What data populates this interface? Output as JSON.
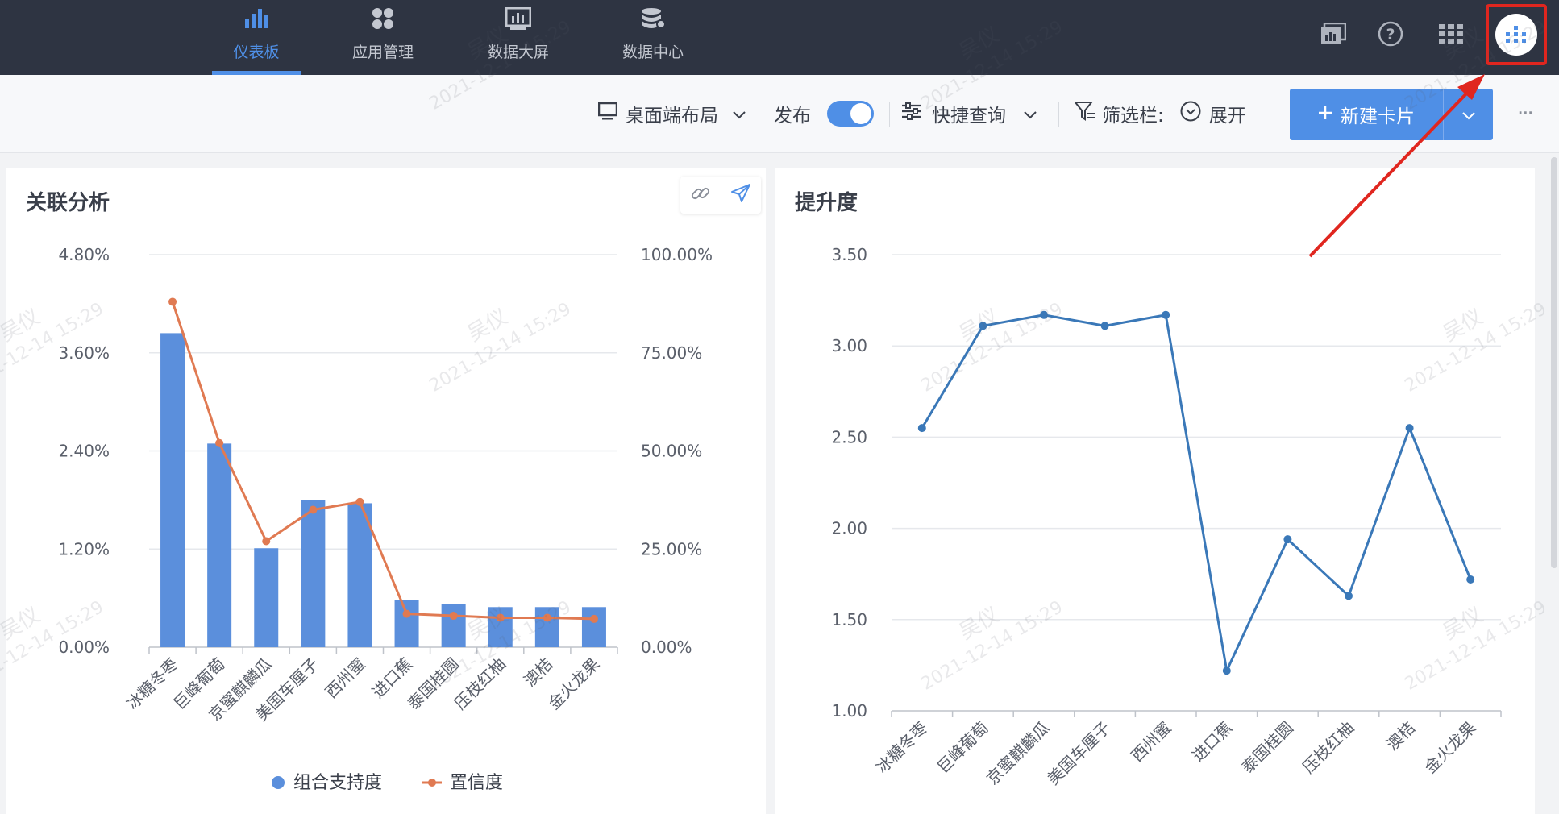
{
  "nav": {
    "items": [
      {
        "label": "仪表板",
        "icon": "bar-chart-icon",
        "active": true
      },
      {
        "label": "应用管理",
        "icon": "apps-grid-icon",
        "active": false
      },
      {
        "label": "数据大屏",
        "icon": "data-screen-icon",
        "active": false
      },
      {
        "label": "数据中心",
        "icon": "database-icon",
        "active": false
      }
    ],
    "right_icons": [
      "report-icon",
      "help-icon",
      "app-launcher-icon",
      "avatar-icon"
    ]
  },
  "toolbar": {
    "layout_label": "桌面端布局",
    "publish_label": "发布",
    "publish_on": true,
    "quick_query_label": "快捷查询",
    "filter_label": "筛选栏:",
    "expand_label": "展开",
    "new_card_label": "新建卡片",
    "more_label": "···"
  },
  "watermark": {
    "name": "吴仪",
    "time": "2021-12-14 15:29"
  },
  "colors": {
    "nav_bg": "#2e3442",
    "accent": "#4f8fe6",
    "bar": "#5b8fdc",
    "confidence_line": "#e07a52",
    "lift_line": "#3a78b8",
    "highlight": "#e0261f"
  },
  "chart_data": [
    {
      "type": "bar",
      "title": "关联分析",
      "categories": [
        "冰糖冬枣",
        "巨峰葡萄",
        "京蜜麒麟瓜",
        "美国车厘子",
        "西州蜜",
        "进口蕉",
        "泰国桂圆",
        "压枝红柚",
        "澳桔",
        "金火龙果"
      ],
      "series": [
        {
          "name": "组合支持度",
          "type": "bar",
          "axis": "left",
          "values": [
            3.84,
            2.49,
            1.21,
            1.8,
            1.76,
            0.58,
            0.53,
            0.49,
            0.49,
            0.49
          ]
        },
        {
          "name": "置信度",
          "type": "line",
          "axis": "right",
          "values": [
            88.0,
            52.0,
            27.0,
            35.0,
            37.0,
            8.5,
            8.0,
            7.5,
            7.5,
            7.2
          ]
        }
      ],
      "y_left": {
        "ticks": [
          "0.00%",
          "1.20%",
          "2.40%",
          "3.60%",
          "4.80%"
        ],
        "ylim": [
          0,
          4.8
        ]
      },
      "y_right": {
        "ticks": [
          "0.00%",
          "25.00%",
          "50.00%",
          "75.00%",
          "100.00%"
        ],
        "ylim": [
          0,
          100
        ]
      },
      "legend_position": "bottom",
      "grid": true
    },
    {
      "type": "line",
      "title": "提升度",
      "categories": [
        "冰糖冬枣",
        "巨峰葡萄",
        "京蜜麒麟瓜",
        "美国车厘子",
        "西州蜜",
        "进口蕉",
        "泰国桂圆",
        "压枝红柚",
        "澳桔",
        "金火龙果"
      ],
      "series": [
        {
          "values": [
            2.55,
            3.11,
            3.17,
            3.11,
            3.17,
            1.22,
            1.94,
            1.63,
            2.55,
            1.72
          ]
        }
      ],
      "y_ticks": [
        "1.00",
        "1.50",
        "2.00",
        "2.50",
        "3.00",
        "3.50"
      ],
      "ylim": [
        1.0,
        3.5
      ],
      "grid": true
    }
  ]
}
